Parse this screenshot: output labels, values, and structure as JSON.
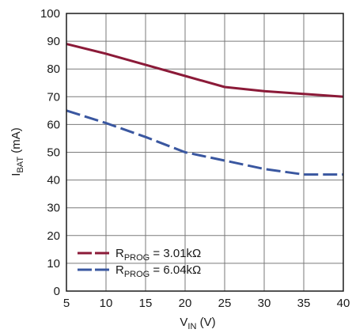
{
  "chart_data": {
    "type": "line",
    "xlabel": {
      "main": "V",
      "sub": "IN",
      "unit": " (V)"
    },
    "ylabel": {
      "main": "I",
      "sub": "BAT",
      "unit": " (mA)"
    },
    "xlim": [
      5,
      40
    ],
    "ylim": [
      0,
      100
    ],
    "x_ticks": [
      "5",
      "10",
      "15",
      "20",
      "25",
      "30",
      "35",
      "40"
    ],
    "y_ticks": [
      "0",
      "10",
      "20",
      "30",
      "40",
      "50",
      "60",
      "70",
      "80",
      "90",
      "100"
    ],
    "grid": true,
    "legend_position": "bottom-left",
    "series": [
      {
        "legend_main": "R",
        "legend_sub": "PROG",
        "legend_value": " = 3.01kΩ",
        "color": "#8b1a38",
        "style": "solid",
        "x": [
          5,
          10,
          15,
          20,
          25,
          30,
          35,
          40
        ],
        "y": [
          89,
          85.5,
          81.5,
          77.5,
          73.5,
          72,
          71,
          70
        ]
      },
      {
        "legend_main": "R",
        "legend_sub": "PROG",
        "legend_value": " = 6.04kΩ",
        "color": "#3a57a0",
        "style": "dashed",
        "x": [
          5,
          10,
          15,
          20,
          25,
          30,
          35,
          40
        ],
        "y": [
          65,
          60.5,
          55.5,
          50,
          47,
          44,
          42,
          42
        ]
      }
    ]
  }
}
